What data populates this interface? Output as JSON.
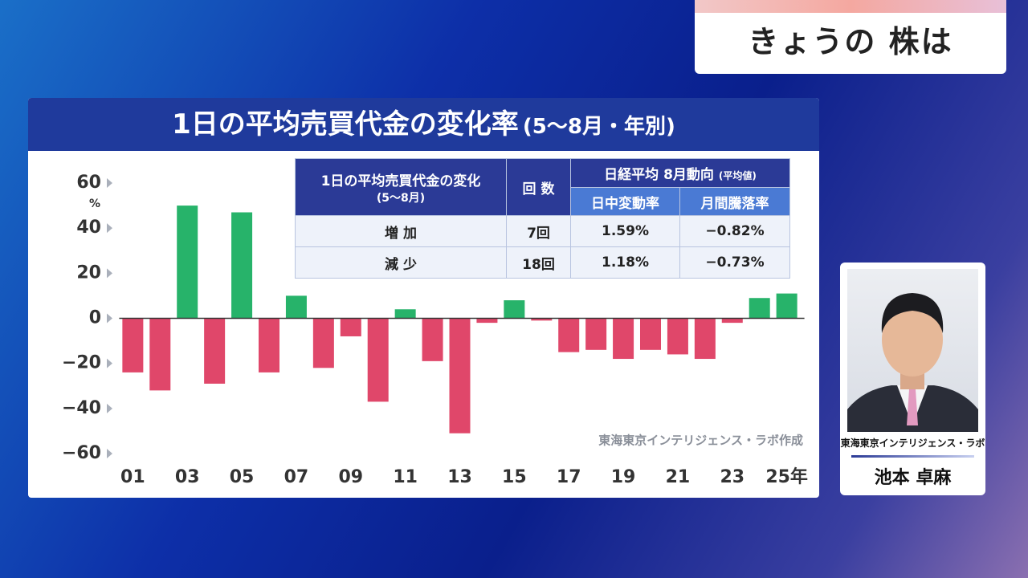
{
  "header": {
    "title": "きょうの 株は"
  },
  "chart_data": {
    "type": "bar",
    "title": "1日の平均売買代金の変化率",
    "subtitle": "(5～8月・年別)",
    "unit": "%",
    "categories": [
      "01",
      null,
      "03",
      null,
      "05",
      null,
      "07",
      null,
      "09",
      null,
      "11",
      null,
      "13",
      null,
      "15",
      null,
      "17",
      null,
      "19",
      null,
      "21",
      null,
      "23",
      null,
      "25年"
    ],
    "values": [
      -24,
      -32,
      50,
      -29,
      47,
      -24,
      10,
      -22,
      -8,
      -37,
      4,
      -19,
      -51,
      -2,
      8,
      -1,
      -15,
      -14,
      -18,
      -14,
      -16,
      -18,
      -2,
      9,
      11
    ],
    "positive_color": "#27b36a",
    "negative_color": "#e0476a",
    "ylim": [
      -60,
      60
    ],
    "yticks": [
      60,
      40,
      20,
      0,
      {
        "value": -20,
        "label": "−20"
      },
      {
        "value": -40,
        "label": "−40"
      },
      {
        "value": -60,
        "label": "−60"
      }
    ],
    "source": "東海東京インテリジェンス・ラボ作成"
  },
  "table": {
    "header": {
      "col1": "1日の平均売買代金の変化",
      "col1_note": "(5～8月)",
      "col2": "回 数",
      "col3": "日経平均 8月動向",
      "col3_note": "(平均値)",
      "sub1": "日中変動率",
      "sub2": "月間騰落率"
    },
    "rows": [
      [
        "増 加",
        "7回",
        "1.59%",
        "−0.82%"
      ],
      [
        "減 少",
        "18回",
        "1.18%",
        "−0.73%"
      ]
    ]
  },
  "presenter": {
    "affiliation": "東海東京インテリジェンス・ラボ",
    "name": "池本 卓麻"
  }
}
